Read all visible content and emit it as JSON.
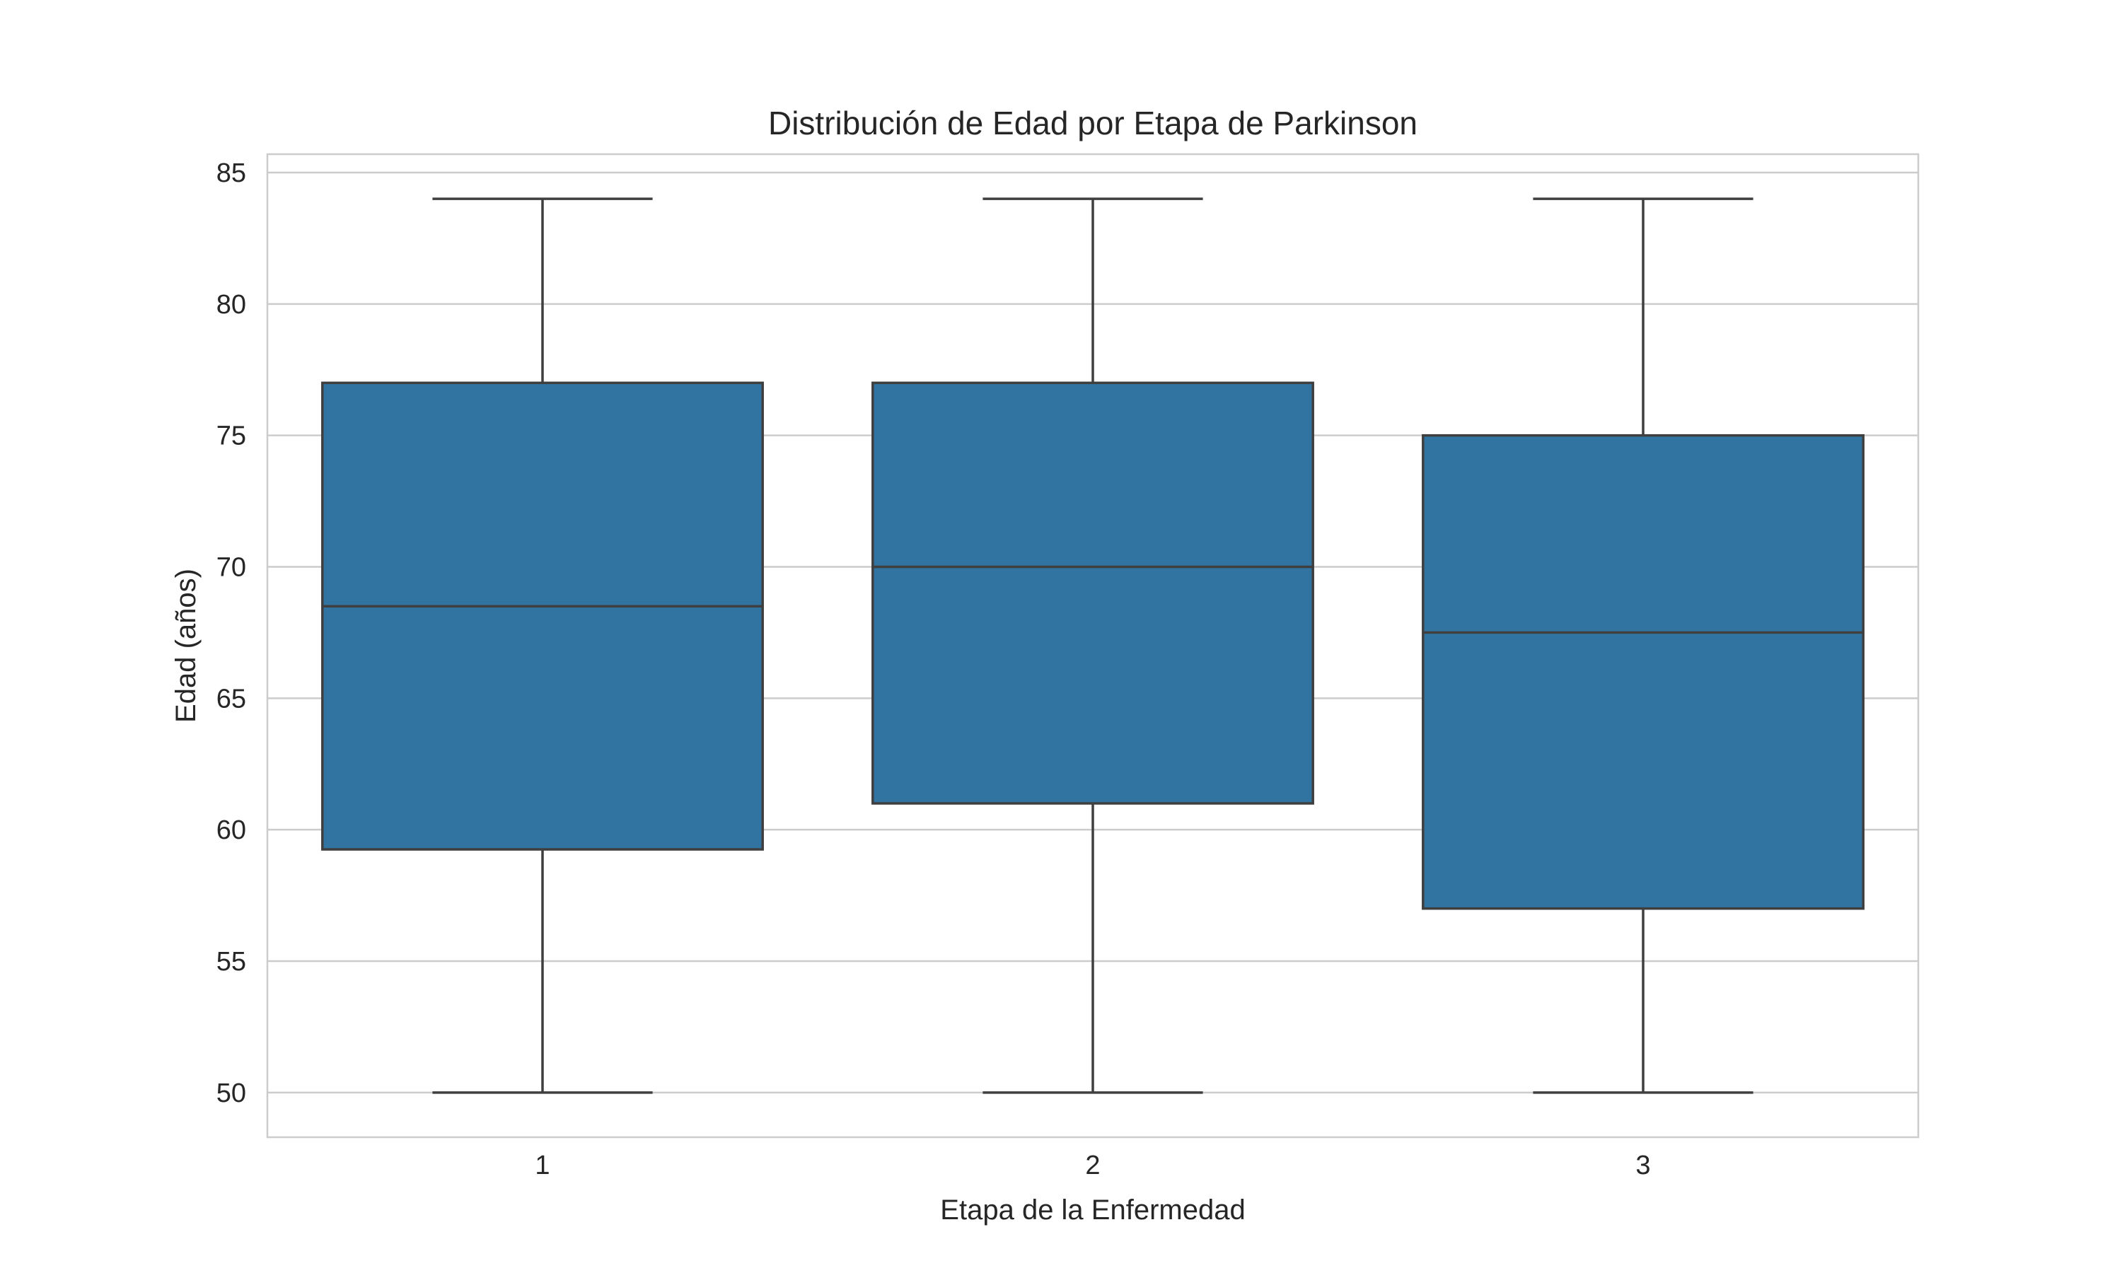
{
  "chart_data": {
    "type": "box",
    "title": "Distribución de Edad por Etapa de Parkinson",
    "xlabel": "Etapa de la Enfermedad",
    "ylabel": "Edad (años)",
    "categories": [
      "1",
      "2",
      "3"
    ],
    "boxes": [
      {
        "category": "1",
        "whisker_low": 50,
        "q1": 59.25,
        "median": 68.5,
        "q3": 77,
        "whisker_high": 84
      },
      {
        "category": "2",
        "whisker_low": 50,
        "q1": 61,
        "median": 70,
        "q3": 77,
        "whisker_high": 84
      },
      {
        "category": "3",
        "whisker_low": 50,
        "q1": 57,
        "median": 67.5,
        "q3": 75,
        "whisker_high": 84
      }
    ],
    "ylim": [
      48.3,
      85.7
    ],
    "yticks": [
      50,
      55,
      60,
      65,
      70,
      75,
      80,
      85
    ],
    "grid": "horizontal",
    "colors": {
      "box_fill": "#3274a1",
      "line": "#3f3f3f",
      "grid": "#cccccc",
      "background": "#ffffff"
    }
  }
}
